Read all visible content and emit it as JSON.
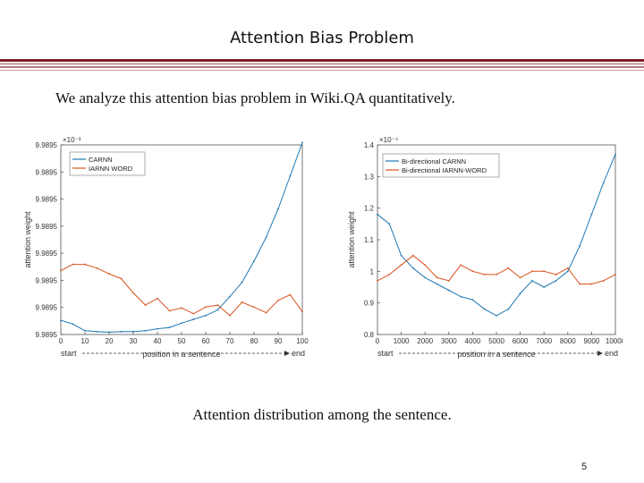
{
  "slide": {
    "title": "Attention Bias Problem",
    "intro": "We analyze this attention bias problem in Wiki.QA quantitatively.",
    "caption": "Attention distribution among the sentence.",
    "page_number": "5",
    "accent_color": "#7b1e2b"
  },
  "chart_data": [
    {
      "type": "line",
      "title": "",
      "xlabel": "position in a sentence",
      "ylabel": "attention weight",
      "y_exponent": "×10⁻³",
      "xlim": [
        0,
        100
      ],
      "ylim": [
        9.988,
        9.992
      ],
      "x_ticks": [
        "0",
        "10",
        "20",
        "30",
        "40",
        "50",
        "60",
        "70",
        "80",
        "90",
        "100"
      ],
      "y_ticks": [
        "9.9895",
        "9.9895",
        "9.9895",
        "9.9895",
        "9.9895",
        "9.9895",
        "9.9895",
        "9.9895"
      ],
      "start_label": "start",
      "end_label": "end",
      "legend_position": "top-left",
      "grid": false,
      "x": [
        0,
        5,
        10,
        15,
        20,
        25,
        30,
        35,
        40,
        45,
        50,
        55,
        60,
        65,
        70,
        75,
        80,
        85,
        90,
        95,
        100
      ],
      "series": [
        {
          "name": "CARNN",
          "color": "#1f77b4",
          "values": [
            9.9883,
            9.98822,
            9.98808,
            9.98806,
            9.98805,
            9.98806,
            9.98806,
            9.98808,
            9.98812,
            9.98815,
            9.98824,
            9.98832,
            9.9884,
            9.98852,
            9.9888,
            9.9891,
            9.98955,
            9.99005,
            9.99065,
            9.99135,
            9.99205
          ]
        },
        {
          "name": "IARNN WORD",
          "color": "#d9531e",
          "values": [
            9.98935,
            9.98948,
            9.98948,
            9.9894,
            9.98928,
            9.98918,
            9.98888,
            9.98862,
            9.98876,
            9.9885,
            9.98856,
            9.98844,
            9.98858,
            9.98862,
            9.9884,
            9.98868,
            9.98858,
            9.98846,
            9.98872,
            9.98884,
            9.98848
          ]
        }
      ]
    },
    {
      "type": "line",
      "title": "",
      "xlabel": "position in a sentence",
      "ylabel": "attention weight",
      "y_exponent": "×10⁻⁴",
      "xlim": [
        0,
        10000
      ],
      "ylim": [
        0.8,
        1.4
      ],
      "x_ticks": [
        "0",
        "1000",
        "2000",
        "3000",
        "4000",
        "5000",
        "6000",
        "7000",
        "8000",
        "9000",
        "10000"
      ],
      "y_ticks": [
        "0.8",
        "0.9",
        "1",
        "1.1",
        "1.2",
        "1.3",
        "1.4"
      ],
      "start_label": "start",
      "end_label": "end",
      "legend_position": "top-left",
      "grid": false,
      "x": [
        0,
        500,
        1000,
        1500,
        2000,
        2500,
        3000,
        3500,
        4000,
        4500,
        5000,
        5500,
        6000,
        6500,
        7000,
        7500,
        8000,
        8500,
        9000,
        9500,
        10000
      ],
      "series": [
        {
          "name": "Bi-directional CARNN",
          "color": "#1f77b4",
          "values": [
            1.18,
            1.15,
            1.05,
            1.01,
            0.98,
            0.96,
            0.94,
            0.92,
            0.91,
            0.88,
            0.86,
            0.88,
            0.93,
            0.97,
            0.95,
            0.97,
            1.0,
            1.08,
            1.18,
            1.28,
            1.37
          ]
        },
        {
          "name": "Bi-directional IARNN-WORD",
          "color": "#d9531e",
          "values": [
            0.97,
            0.99,
            1.02,
            1.05,
            1.02,
            0.98,
            0.97,
            1.02,
            1.0,
            0.99,
            0.99,
            1.01,
            0.98,
            1.0,
            1.0,
            0.99,
            1.01,
            0.96,
            0.96,
            0.97,
            0.99
          ]
        }
      ]
    }
  ]
}
